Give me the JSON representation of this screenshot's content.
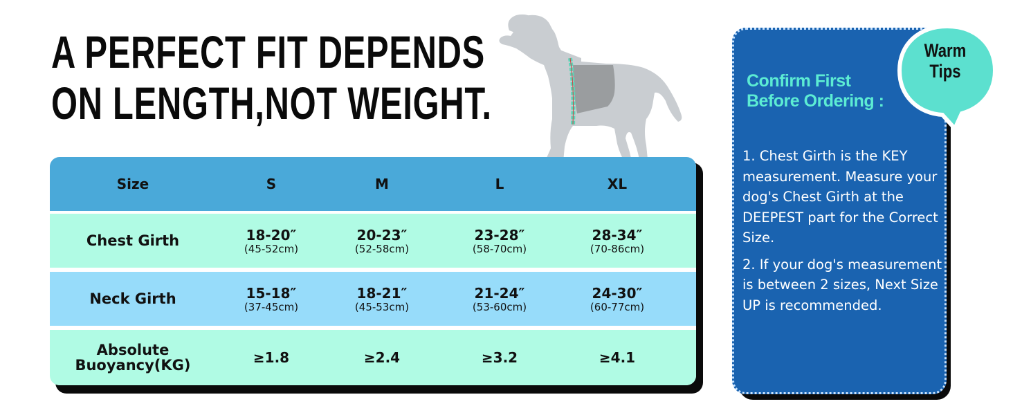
{
  "headline": {
    "line1": "A PERFECT FIT DEPENDS",
    "line2": "ON LENGTH,NOT WEIGHT."
  },
  "colors": {
    "header_row": "#4aa9d9",
    "mint_row": "#b0fbe4",
    "blue_row": "#97dcfa",
    "tips_panel": "#1a63b0",
    "tips_title": "#5cecd3",
    "bubble": "#5ce0cf"
  },
  "size_table": {
    "header": [
      "Size",
      "S",
      "M",
      "L",
      "XL"
    ],
    "rows": [
      {
        "label": "Chest Girth",
        "cells": [
          {
            "main": "18-20″",
            "sub": "(45-52cm)"
          },
          {
            "main": "20-23″",
            "sub": "(52-58cm)"
          },
          {
            "main": "23-28″",
            "sub": "(58-70cm)"
          },
          {
            "main": "28-34″",
            "sub": "(70-86cm)"
          }
        ]
      },
      {
        "label": "Neck Girth",
        "cells": [
          {
            "main": "15-18″",
            "sub": "(37-45cm)"
          },
          {
            "main": "18-21″",
            "sub": "(45-53cm)"
          },
          {
            "main": "21-24″",
            "sub": "(53-60cm)"
          },
          {
            "main": "24-30″",
            "sub": "(60-77cm)"
          }
        ]
      },
      {
        "label_line1": "Absolute",
        "label_line2": "Buoyancy(KG)",
        "cells": [
          "≥1.8",
          "≥2.4",
          "≥3.2",
          "≥4.1"
        ]
      }
    ]
  },
  "tips": {
    "bubble_line1": "Warm",
    "bubble_line2": "Tips",
    "title_line1": "Confirm First",
    "title_line2": "Before Ordering :",
    "item1": "1. Chest Girth is the KEY measurement. Measure your dog's Chest Girth at the DEEPEST part for the Correct Size.",
    "item2": "2. If your dog's measurement is between 2 sizes, Next Size UP is recommended."
  },
  "icons": [
    "dog-silhouette",
    "speech-bubble"
  ]
}
